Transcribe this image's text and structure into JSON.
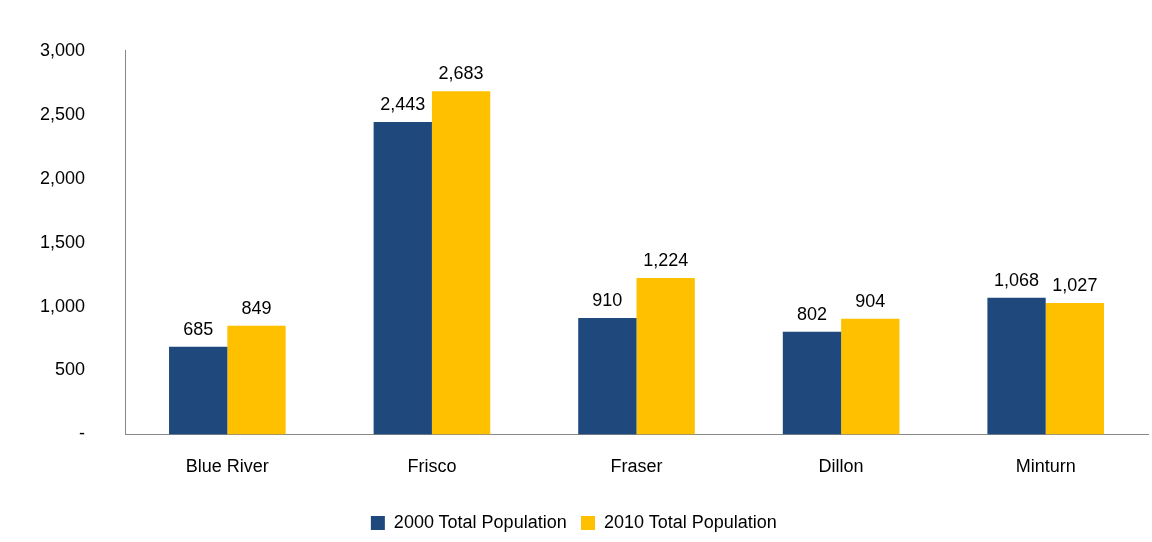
{
  "chart_data": {
    "type": "bar",
    "categories": [
      "Blue River",
      "Frisco",
      "Fraser",
      "Dillon",
      "Minturn"
    ],
    "series": [
      {
        "name": "2000 Total Population",
        "color": "#1f497d",
        "values": [
          685,
          2443,
          910,
          802,
          1068
        ],
        "value_labels": [
          "685",
          "2,443",
          "910",
          "802",
          "1,068"
        ]
      },
      {
        "name": "2010 Total Population",
        "color": "#ffc000",
        "values": [
          849,
          2683,
          1224,
          904,
          1027
        ],
        "value_labels": [
          "849",
          "2,683",
          "1,224",
          "904",
          "1,027"
        ]
      }
    ],
    "ylim": [
      0,
      3000
    ],
    "yticks": [
      {
        "value": 0,
        "label": "-"
      },
      500,
      {
        "value": 1000,
        "label": "1,000"
      },
      {
        "value": 1500,
        "label": "1,500"
      },
      {
        "value": 2000,
        "label": "2,000"
      },
      {
        "value": 2500,
        "label": "2,500"
      },
      {
        "value": 3000,
        "label": "3,000"
      }
    ],
    "grid": false,
    "legend": "bottom"
  }
}
